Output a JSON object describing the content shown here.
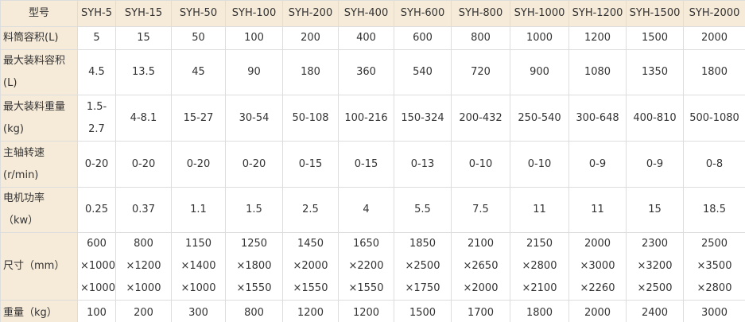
{
  "table": {
    "header": [
      "型号",
      "SYH-5",
      "SYH-15",
      "SYH-50",
      "SYH-100",
      "SYH-200",
      "SYH-400",
      "SYH-600",
      "SYH-800",
      "SYH-1000",
      "SYH-1200",
      "SYH-1500",
      "SYH-2000"
    ],
    "rows": [
      [
        "料筒容积(L)",
        "5",
        "15",
        "50",
        "100",
        "200",
        "400",
        "600",
        "800",
        "1000",
        "1200",
        "1500",
        "2000"
      ],
      [
        "最大装料容积\n(L)",
        "4.5",
        "13.5",
        "45",
        "90",
        "180",
        "360",
        "540",
        "720",
        "900",
        "1080",
        "1350",
        "1800"
      ],
      [
        "最大装料重量\n(kg)",
        "1.5-\n2.7",
        "4-8.1",
        "15-27",
        "30-54",
        "50-108",
        "100-216",
        "150-324",
        "200-432",
        "250-540",
        "300-648",
        "400-810",
        "500-1080"
      ],
      [
        "主轴转速\n(r/min)",
        "0-20",
        "0-20",
        "0-20",
        "0-20",
        "0-15",
        "0-15",
        "0-13",
        "0-10",
        "0-10",
        "0-9",
        "0-9",
        "0-8"
      ],
      [
        "电机功率\n（kw）",
        "0.25",
        "0.37",
        "1.1",
        "1.5",
        "2.5",
        "4",
        "5.5",
        "7.5",
        "11",
        "11",
        "15",
        "18.5"
      ],
      [
        "尺寸（mm）",
        "600\n×1000\n×1000",
        "800\n×1200\n×1000",
        "1150\n×1400\n×1000",
        "1250\n×1800\n×1550",
        "1450\n×2000\n×1550",
        "1650\n×2200\n×1550",
        "1850\n×2500\n×1750",
        "2100\n×2650\n×2000",
        "2150\n×2800\n×2100",
        "2000\n×3000\n×2260",
        "2300\n×3200\n×2500",
        "2500\n×3500\n×2800"
      ],
      [
        "重量（kg）",
        "100",
        "200",
        "300",
        "800",
        "1200",
        "1200",
        "1500",
        "1700",
        "1800",
        "2000",
        "2400",
        "3000"
      ]
    ]
  }
}
